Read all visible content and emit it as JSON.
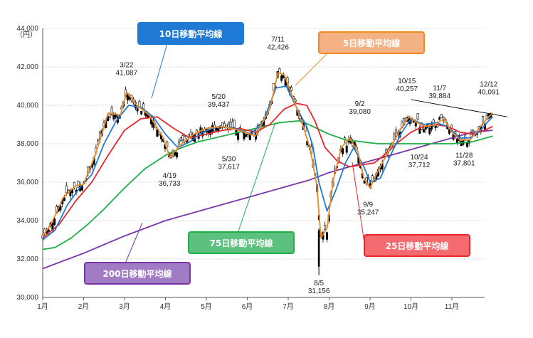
{
  "chart_data": {
    "type": "line",
    "title": "",
    "ylabel": "（円）",
    "xlabel": "",
    "ylim": [
      30000,
      44000
    ],
    "y_ticks": [
      "30,000",
      "32,000",
      "34,000",
      "36,000",
      "38,000",
      "40,000",
      "42,000",
      "44,000"
    ],
    "y_tick_values": [
      30000,
      32000,
      34000,
      36000,
      38000,
      40000,
      42000,
      44000
    ],
    "x_months": [
      "1月",
      "2月",
      "3月",
      "4月",
      "5月",
      "6月",
      "7月",
      "8月",
      "9月",
      "10月",
      "11月"
    ],
    "colors": {
      "candle_up": "#ffffff",
      "candle_down": "#000000",
      "ma5": "#f08a24",
      "ma10": "#1f7ad6",
      "ma25": "#e8262c",
      "ma75": "#1fae4a",
      "ma200": "#7a35a8",
      "trendline": "#000000"
    },
    "series": [
      {
        "name": "5日移動平均線",
        "key": "ma5",
        "values": [
          [
            0,
            33200
          ],
          [
            0.2,
            33800
          ],
          [
            0.5,
            35200
          ],
          [
            0.8,
            35800
          ],
          [
            1.0,
            35900
          ],
          [
            1.3,
            37500
          ],
          [
            1.6,
            39600
          ],
          [
            1.9,
            39500
          ],
          [
            2.05,
            40700
          ],
          [
            2.3,
            40000
          ],
          [
            2.6,
            39500
          ],
          [
            2.95,
            38300
          ],
          [
            3.1,
            37300
          ],
          [
            3.4,
            38000
          ],
          [
            3.7,
            38500
          ],
          [
            4.0,
            38800
          ],
          [
            4.4,
            38900
          ],
          [
            4.8,
            38700
          ],
          [
            5.2,
            38400
          ],
          [
            5.55,
            39800
          ],
          [
            5.75,
            41700
          ],
          [
            5.9,
            41600
          ],
          [
            6.15,
            40200
          ],
          [
            6.4,
            38700
          ],
          [
            6.55,
            37600
          ],
          [
            6.7,
            35800
          ],
          [
            6.8,
            33100
          ],
          [
            6.95,
            33600
          ],
          [
            7.1,
            36100
          ],
          [
            7.3,
            37800
          ],
          [
            7.5,
            38300
          ],
          [
            7.7,
            37600
          ],
          [
            7.85,
            36200
          ],
          [
            8.0,
            35700
          ],
          [
            8.2,
            36600
          ],
          [
            8.45,
            37600
          ],
          [
            8.7,
            38600
          ],
          [
            8.95,
            39400
          ],
          [
            9.15,
            39100
          ],
          [
            9.35,
            38900
          ],
          [
            9.6,
            39000
          ],
          [
            9.8,
            39300
          ],
          [
            10.0,
            38600
          ],
          [
            10.2,
            38200
          ],
          [
            10.45,
            38200
          ],
          [
            10.7,
            38900
          ],
          [
            10.9,
            39400
          ],
          [
            11.0,
            39600
          ]
        ]
      },
      {
        "name": "10日移動平均線",
        "key": "ma10",
        "values": [
          [
            0,
            33000
          ],
          [
            0.3,
            33500
          ],
          [
            0.6,
            34800
          ],
          [
            0.9,
            35700
          ],
          [
            1.2,
            36400
          ],
          [
            1.5,
            38000
          ],
          [
            1.8,
            39200
          ],
          [
            2.1,
            40000
          ],
          [
            2.4,
            39900
          ],
          [
            2.7,
            39400
          ],
          [
            3.0,
            38500
          ],
          [
            3.3,
            37800
          ],
          [
            3.6,
            38100
          ],
          [
            3.9,
            38600
          ],
          [
            4.3,
            38900
          ],
          [
            4.7,
            38800
          ],
          [
            5.1,
            38500
          ],
          [
            5.4,
            39200
          ],
          [
            5.7,
            40900
          ],
          [
            5.95,
            41000
          ],
          [
            6.2,
            39900
          ],
          [
            6.45,
            38900
          ],
          [
            6.6,
            37900
          ],
          [
            6.75,
            36000
          ],
          [
            6.95,
            34500
          ],
          [
            7.15,
            35500
          ],
          [
            7.4,
            37000
          ],
          [
            7.6,
            37800
          ],
          [
            7.85,
            36800
          ],
          [
            8.0,
            36000
          ],
          [
            8.25,
            36200
          ],
          [
            8.5,
            37400
          ],
          [
            8.75,
            38500
          ],
          [
            9.0,
            39300
          ],
          [
            9.3,
            39000
          ],
          [
            9.6,
            39100
          ],
          [
            9.9,
            38900
          ],
          [
            10.2,
            38300
          ],
          [
            10.45,
            38300
          ],
          [
            10.7,
            38700
          ],
          [
            10.9,
            39200
          ],
          [
            11.0,
            39400
          ]
        ]
      },
      {
        "name": "25日移動平均線",
        "key": "ma25",
        "values": [
          [
            0,
            33100
          ],
          [
            0.4,
            33800
          ],
          [
            0.8,
            35000
          ],
          [
            1.2,
            36000
          ],
          [
            1.6,
            37400
          ],
          [
            2.0,
            38700
          ],
          [
            2.4,
            39300
          ],
          [
            2.8,
            39400
          ],
          [
            3.2,
            38800
          ],
          [
            3.6,
            38300
          ],
          [
            4.0,
            38500
          ],
          [
            4.4,
            38700
          ],
          [
            4.8,
            38800
          ],
          [
            5.2,
            38600
          ],
          [
            5.55,
            39000
          ],
          [
            5.9,
            39800
          ],
          [
            6.2,
            40100
          ],
          [
            6.45,
            40000
          ],
          [
            6.65,
            39200
          ],
          [
            6.9,
            37800
          ],
          [
            7.2,
            37100
          ],
          [
            7.5,
            36800
          ],
          [
            7.8,
            36900
          ],
          [
            8.1,
            37000
          ],
          [
            8.4,
            37500
          ],
          [
            8.7,
            38100
          ],
          [
            9.0,
            38600
          ],
          [
            9.3,
            38900
          ],
          [
            9.6,
            39000
          ],
          [
            9.9,
            38900
          ],
          [
            10.2,
            38600
          ],
          [
            10.5,
            38500
          ],
          [
            10.8,
            38700
          ],
          [
            11.0,
            38900
          ]
        ]
      },
      {
        "name": "75日移動平均線",
        "key": "ma75",
        "values": [
          [
            0,
            32500
          ],
          [
            0.3,
            32600
          ],
          [
            0.7,
            33100
          ],
          [
            1.1,
            33800
          ],
          [
            1.5,
            34600
          ],
          [
            2.0,
            35700
          ],
          [
            2.5,
            36700
          ],
          [
            3.0,
            37400
          ],
          [
            3.4,
            37800
          ],
          [
            3.8,
            38100
          ],
          [
            4.2,
            38300
          ],
          [
            4.6,
            38500
          ],
          [
            5.0,
            38700
          ],
          [
            5.4,
            38900
          ],
          [
            5.8,
            39100
          ],
          [
            6.3,
            39200
          ],
          [
            6.6,
            38900
          ],
          [
            7.0,
            38500
          ],
          [
            7.4,
            38200
          ],
          [
            7.8,
            38100
          ],
          [
            8.2,
            38000
          ],
          [
            8.6,
            38000
          ],
          [
            9.0,
            38000
          ],
          [
            9.5,
            38000
          ],
          [
            10.0,
            38000
          ],
          [
            10.5,
            38100
          ],
          [
            11.0,
            38400
          ]
        ]
      },
      {
        "name": "200日移動平均線",
        "key": "ma200",
        "values": [
          [
            0,
            31500
          ],
          [
            1.0,
            32300
          ],
          [
            2.0,
            33200
          ],
          [
            3.0,
            34000
          ],
          [
            4.0,
            34600
          ],
          [
            5.0,
            35200
          ],
          [
            6.0,
            35800
          ],
          [
            6.5,
            36100
          ],
          [
            7.0,
            36500
          ],
          [
            7.5,
            36800
          ],
          [
            8.0,
            37100
          ],
          [
            8.5,
            37400
          ],
          [
            9.0,
            37700
          ],
          [
            9.5,
            38000
          ],
          [
            10.0,
            38300
          ],
          [
            10.5,
            38600
          ],
          [
            11.0,
            38700
          ]
        ]
      }
    ],
    "trendline": [
      [
        9.0,
        40300
      ],
      [
        11.35,
        39400
      ]
    ],
    "annotations": [
      {
        "date": "3/22",
        "value": "41,087",
        "x": 2.05,
        "y": 41087,
        "above": true
      },
      {
        "date": "4/19",
        "value": "36,733",
        "x": 3.1,
        "y": 36733,
        "above": false
      },
      {
        "date": "5/20",
        "value": "39,437",
        "x": 4.3,
        "y": 39437,
        "above": true
      },
      {
        "date": "5/30",
        "value": "37,617",
        "x": 4.55,
        "y": 37617,
        "above": false
      },
      {
        "date": "7/11",
        "value": "42,426",
        "x": 5.75,
        "y": 42426,
        "above": true
      },
      {
        "date": "8/5",
        "value": "31,156",
        "x": 6.75,
        "y": 31156,
        "above": false
      },
      {
        "date": "9/2",
        "value": "39,080",
        "x": 7.75,
        "y": 39080,
        "above": true
      },
      {
        "date": "9/9",
        "value": "35,247",
        "x": 7.95,
        "y": 35247,
        "above": false
      },
      {
        "date": "10/15",
        "value": "40,257",
        "x": 8.9,
        "y": 40257,
        "above": true
      },
      {
        "date": "10/24",
        "value": "37,712",
        "x": 9.2,
        "y": 37712,
        "above": false
      },
      {
        "date": "11/7",
        "value": "39,884",
        "x": 9.7,
        "y": 39884,
        "above": true
      },
      {
        "date": "11/28",
        "value": "37,801",
        "x": 10.3,
        "y": 37801,
        "above": false
      },
      {
        "date": "12/12",
        "value": "40,091",
        "x": 10.9,
        "y": 40091,
        "above": true
      }
    ]
  },
  "callouts": [
    {
      "key": "ma10",
      "label": "10日移動平均線",
      "bg": "#1f7ad6",
      "border": "#1f7ad6"
    },
    {
      "key": "ma5",
      "label": "5日移動平均線",
      "bg": "#f4b183",
      "border": "#f08a24"
    },
    {
      "key": "ma75",
      "label": "75日移動平均線",
      "bg": "#5cc17e",
      "border": "#1fae4a"
    },
    {
      "key": "ma25",
      "label": "25日移動平均線",
      "bg": "#f36a6f",
      "border": "#e8262c"
    },
    {
      "key": "ma200",
      "label": "200日移動平均線",
      "bg": "#a17bc4",
      "border": "#7a35a8"
    }
  ]
}
